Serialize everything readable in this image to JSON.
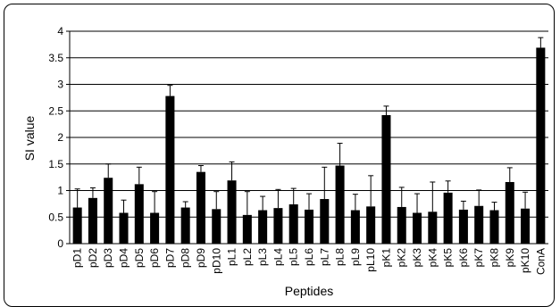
{
  "chart_data": {
    "type": "bar",
    "title": "",
    "xlabel": "Peptides",
    "ylabel": "SI value",
    "ylim": [
      0,
      4
    ],
    "yticks": [
      "0",
      "0.5",
      "1",
      "1.5",
      "2",
      "2.5",
      "3",
      "3.5",
      "4"
    ],
    "grid": "horizontal",
    "legend": "none",
    "bar_color": "#000000",
    "categories": [
      "pD1",
      "pD2",
      "pD3",
      "pD4",
      "pD5",
      "pD6",
      "pD7",
      "pD8",
      "pD9",
      "pD10",
      "pL1",
      "pL2",
      "pL3",
      "pL4",
      "pL5",
      "pL6",
      "pL7",
      "pL8",
      "pL9",
      "pL10",
      "pK1",
      "pK2",
      "pK3",
      "pK4",
      "pK5",
      "pK6",
      "pK7",
      "pK8",
      "pK9",
      "pK10",
      "ConA"
    ],
    "values": [
      0.68,
      0.86,
      1.24,
      0.58,
      1.12,
      0.58,
      2.78,
      0.68,
      1.35,
      0.65,
      1.19,
      0.54,
      0.63,
      0.67,
      0.74,
      0.64,
      0.84,
      1.47,
      0.63,
      0.7,
      2.42,
      0.69,
      0.58,
      0.6,
      0.96,
      0.64,
      0.71,
      0.63,
      1.16,
      0.66,
      3.69
    ],
    "errors": [
      0.35,
      0.19,
      0.26,
      0.24,
      0.32,
      0.4,
      0.2,
      0.11,
      0.12,
      0.33,
      0.35,
      0.44,
      0.26,
      0.35,
      0.3,
      0.3,
      0.6,
      0.42,
      0.3,
      0.58,
      0.17,
      0.37,
      0.36,
      0.56,
      0.22,
      0.16,
      0.3,
      0.15,
      0.27,
      0.31,
      0.19
    ]
  }
}
